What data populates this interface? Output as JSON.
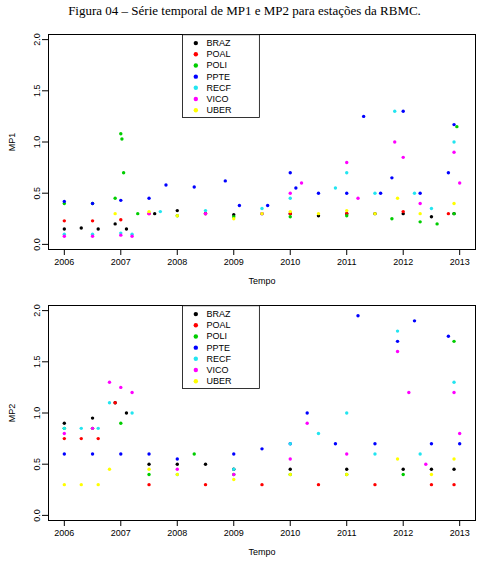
{
  "chart_data": [
    {
      "type": "scatter",
      "title": "Figura 04 – Série temporal de MP1 e MP2 para estações da RBMC.",
      "x_label": "Tempo",
      "y_label": "MP1",
      "legend": "top",
      "xlim": [
        2005.72,
        2013.28
      ],
      "xticks": [
        2006,
        2007,
        2008,
        2009,
        2010,
        2011,
        2012,
        2013
      ],
      "ylim": [
        -0.05,
        2.05
      ],
      "yticks": [
        {
          "value": 0,
          "label": "0.0"
        },
        {
          "value": 0.5,
          "label": "0.5"
        },
        {
          "value": 1,
          "label": "1.0"
        },
        {
          "value": 1.5,
          "label": "1.5"
        },
        {
          "value": 2,
          "label": "2.0"
        }
      ],
      "series": [
        {
          "name": "BRAZ",
          "color": "#000000",
          "x": [
            2006.0,
            2006.3,
            2006.6,
            2006.9,
            2007.1,
            2007.6,
            2008.0,
            2008.5,
            2009.0,
            2009.5,
            2010.0,
            2010.5,
            2011.0,
            2011.5,
            2012.0,
            2012.5,
            2012.9
          ],
          "values": [
            0.15,
            0.16,
            0.15,
            0.2,
            0.15,
            0.3,
            0.33,
            0.3,
            0.29,
            0.3,
            0.3,
            0.28,
            0.3,
            0.3,
            0.3,
            0.27,
            0.3
          ]
        },
        {
          "name": "POAL",
          "color": "#ff0000",
          "x": [
            2006.0,
            2006.5,
            2007.0,
            2007.5,
            2008.5,
            2010.0,
            2011.0,
            2012.0,
            2012.8
          ],
          "values": [
            0.23,
            0.23,
            0.24,
            0.3,
            0.3,
            0.3,
            0.3,
            0.32,
            0.3
          ]
        },
        {
          "name": "POLI",
          "color": "#00cd00",
          "x": [
            2006.0,
            2006.5,
            2006.9,
            2007.0,
            2007.02,
            2007.05,
            2007.3,
            2008.0,
            2009.0,
            2010.0,
            2011.0,
            2011.8,
            2012.3,
            2012.6,
            2012.9,
            2012.95
          ],
          "values": [
            0.4,
            0.4,
            0.45,
            1.08,
            1.03,
            0.7,
            0.3,
            0.28,
            0.27,
            0.27,
            0.28,
            0.25,
            0.22,
            0.2,
            0.3,
            1.15
          ]
        },
        {
          "name": "PPTE",
          "color": "#0000ff",
          "x": [
            2006.0,
            2006.5,
            2007.0,
            2007.5,
            2007.8,
            2008.3,
            2008.85,
            2009.1,
            2009.6,
            2010.0,
            2010.1,
            2010.5,
            2011.0,
            2011.3,
            2011.6,
            2011.8,
            2012.0,
            2012.3,
            2012.8,
            2012.9
          ],
          "values": [
            0.42,
            0.4,
            0.43,
            0.45,
            0.58,
            0.56,
            0.62,
            0.38,
            0.38,
            0.7,
            0.55,
            0.5,
            0.5,
            1.25,
            0.5,
            0.65,
            1.3,
            0.5,
            0.7,
            1.17
          ]
        },
        {
          "name": "RECF",
          "color": "#22e5f0",
          "x": [
            2006.0,
            2006.5,
            2007.0,
            2007.2,
            2007.7,
            2008.5,
            2009.5,
            2010.0,
            2010.8,
            2011.0,
            2011.5,
            2011.85,
            2012.2,
            2012.5,
            2012.9
          ],
          "values": [
            0.1,
            0.1,
            0.11,
            0.1,
            0.32,
            0.33,
            0.35,
            0.45,
            0.55,
            0.7,
            0.5,
            1.3,
            0.5,
            0.35,
            1.0
          ]
        },
        {
          "name": "VICO",
          "color": "#ff00ff",
          "x": [
            2006.0,
            2006.5,
            2007.0,
            2007.2,
            2007.5,
            2008.5,
            2009.5,
            2010.0,
            2010.2,
            2011.0,
            2011.2,
            2011.85,
            2012.0,
            2012.3,
            2012.9,
            2013.0
          ],
          "values": [
            0.08,
            0.08,
            0.09,
            0.08,
            0.3,
            0.3,
            0.3,
            0.5,
            0.6,
            0.8,
            0.45,
            1.0,
            0.85,
            0.4,
            0.9,
            0.6
          ]
        },
        {
          "name": "UBER",
          "color": "#ffff00",
          "x": [
            2006.9,
            2007.5,
            2008.0,
            2009.0,
            2009.5,
            2010.0,
            2010.5,
            2011.0,
            2011.5,
            2011.9,
            2012.3,
            2012.9
          ],
          "values": [
            0.3,
            0.32,
            0.28,
            0.25,
            0.3,
            0.32,
            0.3,
            0.33,
            0.3,
            0.45,
            0.3,
            0.4
          ]
        }
      ]
    },
    {
      "type": "scatter",
      "x_label": "Tempo",
      "y_label": "MP2",
      "legend": "top",
      "xlim": [
        2005.72,
        2013.28
      ],
      "xticks": [
        2006,
        2007,
        2008,
        2009,
        2010,
        2011,
        2012,
        2013
      ],
      "ylim": [
        -0.05,
        2.05
      ],
      "yticks": [
        {
          "value": 0,
          "label": "0.0"
        },
        {
          "value": 0.5,
          "label": "0.5"
        },
        {
          "value": 1,
          "label": "1.0"
        },
        {
          "value": 1.5,
          "label": "1.5"
        },
        {
          "value": 2,
          "label": "2.0"
        }
      ],
      "series": [
        {
          "name": "BRAZ",
          "color": "#000000",
          "x": [
            2006.0,
            2006.5,
            2006.9,
            2007.1,
            2007.5,
            2008.0,
            2008.5,
            2009.0,
            2010.0,
            2011.0,
            2012.0,
            2012.5,
            2012.9
          ],
          "values": [
            0.9,
            0.95,
            1.1,
            1.0,
            0.5,
            0.5,
            0.5,
            0.45,
            0.45,
            0.45,
            0.45,
            0.45,
            0.45
          ]
        },
        {
          "name": "POAL",
          "color": "#ff0000",
          "x": [
            2006.0,
            2006.3,
            2006.6,
            2006.9,
            2007.5,
            2008.5,
            2009.5,
            2010.5,
            2011.5,
            2012.5,
            2012.9
          ],
          "values": [
            0.75,
            0.75,
            0.75,
            1.1,
            0.3,
            0.3,
            0.3,
            0.3,
            0.3,
            0.3,
            0.3
          ]
        },
        {
          "name": "POLI",
          "color": "#00cd00",
          "x": [
            2006.0,
            2006.5,
            2007.0,
            2007.5,
            2008.3,
            2009.0,
            2010.0,
            2011.0,
            2012.0,
            2012.9
          ],
          "values": [
            0.85,
            0.85,
            0.9,
            0.4,
            0.6,
            0.4,
            0.4,
            0.4,
            0.4,
            1.7
          ]
        },
        {
          "name": "PPTE",
          "color": "#0000ff",
          "x": [
            2006.0,
            2006.5,
            2007.0,
            2007.5,
            2008.0,
            2009.0,
            2009.5,
            2010.0,
            2010.3,
            2010.8,
            2011.2,
            2011.5,
            2011.9,
            2012.2,
            2012.5,
            2012.8,
            2013.0
          ],
          "values": [
            0.6,
            0.6,
            0.6,
            0.6,
            0.55,
            0.6,
            0.65,
            0.7,
            1.0,
            0.7,
            1.95,
            0.7,
            1.7,
            1.9,
            0.7,
            1.75,
            0.7
          ]
        },
        {
          "name": "RECF",
          "color": "#22e5f0",
          "x": [
            2006.0,
            2006.3,
            2006.6,
            2006.8,
            2007.2,
            2008.0,
            2009.0,
            2010.0,
            2010.5,
            2011.0,
            2011.5,
            2011.9,
            2012.3,
            2012.9
          ],
          "values": [
            0.85,
            0.85,
            0.85,
            1.1,
            1.0,
            0.4,
            0.45,
            0.7,
            0.8,
            1.0,
            0.6,
            1.8,
            0.6,
            1.3
          ]
        },
        {
          "name": "VICO",
          "color": "#ff00ff",
          "x": [
            2006.0,
            2006.5,
            2006.8,
            2007.0,
            2007.2,
            2008.0,
            2009.0,
            2010.0,
            2010.3,
            2011.0,
            2011.9,
            2012.1,
            2012.4,
            2012.9,
            2013.0
          ],
          "values": [
            0.8,
            0.85,
            1.3,
            1.25,
            1.2,
            0.45,
            0.4,
            0.55,
            0.9,
            0.6,
            1.6,
            1.2,
            0.5,
            1.2,
            0.8
          ]
        },
        {
          "name": "UBER",
          "color": "#ffff00",
          "x": [
            2006.0,
            2006.3,
            2006.6,
            2006.8,
            2007.5,
            2008.0,
            2009.0,
            2010.0,
            2011.0,
            2011.9,
            2012.5,
            2012.9
          ],
          "values": [
            0.3,
            0.3,
            0.3,
            0.45,
            0.45,
            0.4,
            0.35,
            0.4,
            0.4,
            0.55,
            0.4,
            0.55
          ]
        }
      ]
    }
  ]
}
